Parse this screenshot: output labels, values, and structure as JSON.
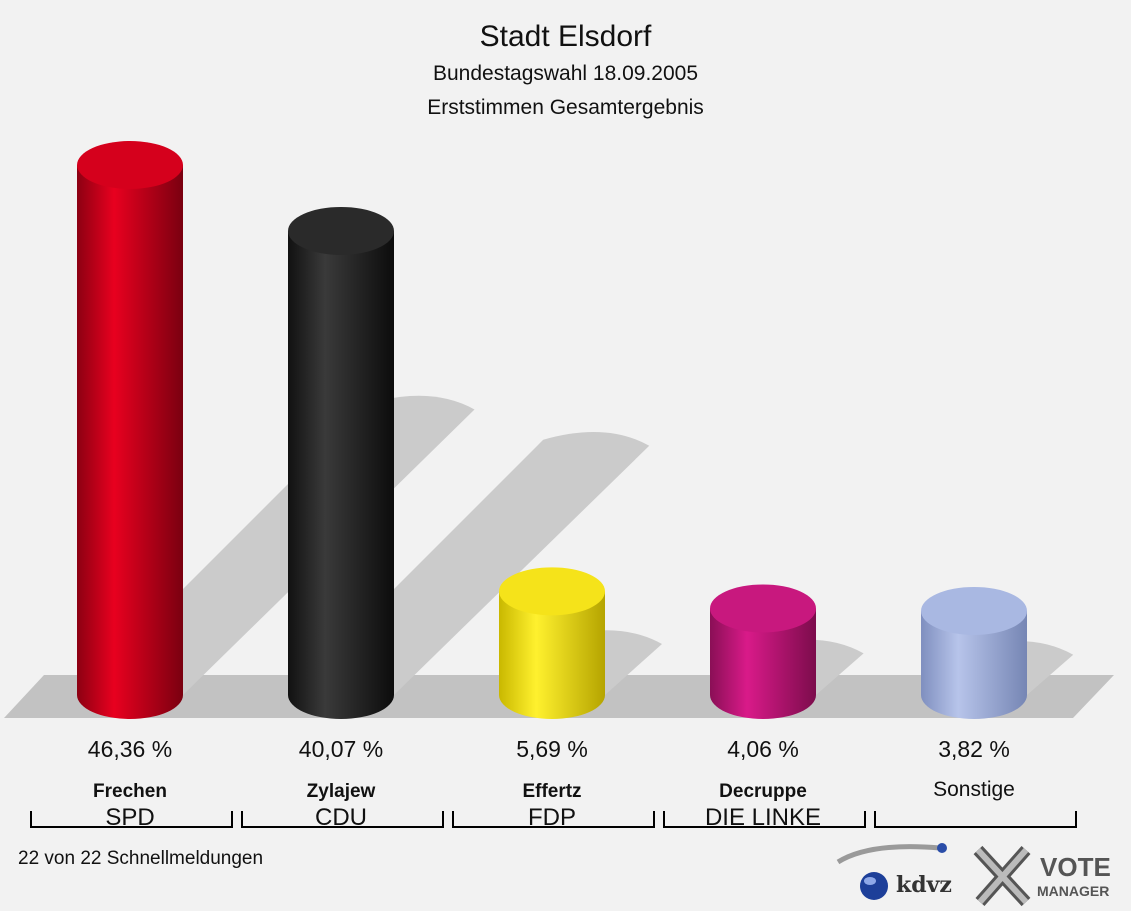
{
  "chart_data": {
    "type": "bar",
    "title": "Stadt Elsdorf",
    "subtitle": "Bundestagswahl 18.09.2005",
    "subtitle2": "Erststimmen Gesamtergebnis",
    "categories": [
      "SPD",
      "CDU",
      "FDP",
      "DIE LINKE",
      ""
    ],
    "candidates": [
      "Frechen",
      "Zylajew",
      "Effertz",
      "Decruppe",
      "Sonstige"
    ],
    "values": [
      46.36,
      40.07,
      5.69,
      4.06,
      3.82
    ],
    "value_labels": [
      "46,36 %",
      "40,07 %",
      "5,69 %",
      "4,06 %",
      "3,82 %"
    ],
    "colors": [
      "#d5001c",
      "#2a2a2a",
      "#f5e31a",
      "#c8187e",
      "#a9b8e2"
    ],
    "ylim": [
      0,
      46.36
    ],
    "grid": false,
    "legend": "none"
  },
  "footnote": "22 von 22 Schnellmeldungen",
  "logo": {
    "kdvz_text": "kdvz",
    "vote_text": "VOTE",
    "manager_text": "MANAGER"
  }
}
